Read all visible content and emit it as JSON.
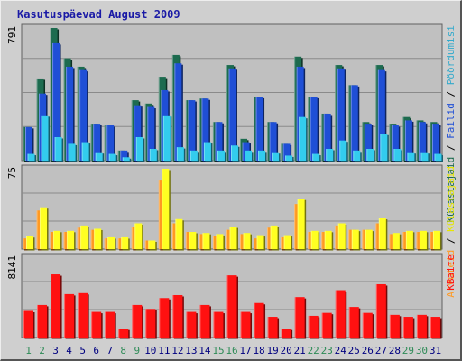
{
  "title": "Kasutuspäevad August 2009",
  "colors": {
    "frame_bg": "#cfcfcf",
    "plot_bg": "#c0c0c0",
    "gridline": "#8a8a8a",
    "title": "#1a1aa6",
    "weekday_label": "#000080",
    "weekend_label": "#2e8b57"
  },
  "weekend_days": [
    1,
    2,
    8,
    9,
    15,
    16,
    22,
    23,
    29,
    30
  ],
  "chart_data": [
    {
      "type": "bar",
      "panel": "top",
      "max_label": "791",
      "ylim": [
        0,
        791
      ],
      "categories": [
        "1",
        "2",
        "3",
        "4",
        "5",
        "6",
        "7",
        "8",
        "9",
        "10",
        "11",
        "12",
        "13",
        "14",
        "15",
        "16",
        "17",
        "18",
        "19",
        "20",
        "21",
        "22",
        "23",
        "24",
        "25",
        "26",
        "27",
        "28",
        "29",
        "30",
        "31"
      ],
      "series": [
        {
          "name": "Külastajaid",
          "color": "#1d6b4f",
          "values": [
            200,
            490,
            791,
            610,
            560,
            220,
            210,
            60,
            360,
            340,
            500,
            630,
            360,
            370,
            230,
            570,
            130,
            380,
            230,
            100,
            620,
            380,
            280,
            570,
            450,
            230,
            570,
            220,
            260,
            240,
            230
          ]
        },
        {
          "name": "Failid",
          "color": "#1f4fd6",
          "values": [
            200,
            400,
            700,
            560,
            540,
            220,
            210,
            60,
            330,
            320,
            420,
            580,
            360,
            370,
            230,
            550,
            110,
            380,
            230,
            100,
            560,
            380,
            280,
            550,
            450,
            220,
            540,
            210,
            240,
            230,
            220
          ]
        },
        {
          "name": "Pöördumisi",
          "color": "#33ccee",
          "values": [
            40,
            270,
            140,
            100,
            110,
            50,
            40,
            20,
            140,
            70,
            270,
            80,
            60,
            110,
            60,
            90,
            60,
            60,
            50,
            30,
            260,
            40,
            70,
            120,
            60,
            70,
            160,
            70,
            50,
            50,
            40
          ]
        }
      ]
    },
    {
      "type": "bar",
      "panel": "middle",
      "max_label": "75",
      "ylim": [
        0,
        75
      ],
      "categories": [
        "1",
        "2",
        "3",
        "4",
        "5",
        "6",
        "7",
        "8",
        "9",
        "10",
        "11",
        "12",
        "13",
        "14",
        "15",
        "16",
        "17",
        "18",
        "19",
        "20",
        "21",
        "22",
        "23",
        "24",
        "25",
        "26",
        "27",
        "28",
        "29",
        "30",
        "31"
      ],
      "series": [
        {
          "name": "Arvuteid",
          "color": "#ff9922",
          "values": [
            10,
            36,
            16,
            16,
            20,
            18,
            10,
            10,
            21,
            8,
            64,
            24,
            16,
            14,
            12,
            18,
            14,
            10,
            20,
            11,
            42,
            16,
            16,
            22,
            18,
            18,
            24,
            14,
            16,
            16,
            16
          ]
        },
        {
          "name": "Külastajaid",
          "color": "#ffff22",
          "values": [
            12,
            39,
            17,
            17,
            22,
            19,
            11,
            11,
            24,
            8,
            75,
            28,
            16,
            15,
            14,
            21,
            15,
            13,
            22,
            13,
            47,
            17,
            17,
            24,
            18,
            18,
            29,
            15,
            17,
            17,
            17
          ]
        }
      ]
    },
    {
      "type": "bar",
      "panel": "bottom",
      "max_label": "8141",
      "ylim": [
        0,
        8141
      ],
      "categories": [
        "1",
        "2",
        "3",
        "4",
        "5",
        "6",
        "7",
        "8",
        "9",
        "10",
        "11",
        "12",
        "13",
        "14",
        "15",
        "16",
        "17",
        "18",
        "19",
        "20",
        "21",
        "22",
        "23",
        "24",
        "25",
        "26",
        "27",
        "28",
        "29",
        "30",
        "31"
      ],
      "series": [
        {
          "name": "KBaite",
          "color": "#ff1111",
          "values": [
            2700,
            3300,
            6400,
            4400,
            4500,
            2600,
            2600,
            900,
            3300,
            2900,
            4000,
            4300,
            2600,
            3300,
            2600,
            6300,
            2600,
            3500,
            2100,
            900,
            4100,
            2200,
            2500,
            4800,
            3100,
            2500,
            5400,
            2300,
            2100,
            2300,
            2100
          ]
        }
      ]
    }
  ],
  "side_legends": [
    {
      "panel": "top",
      "parts": [
        {
          "text": "Külastajaid",
          "color": "#1d6b4f"
        },
        {
          "text": " / ",
          "color": "#000000"
        },
        {
          "text": "Failid",
          "color": "#1f4fd6"
        },
        {
          "text": " / ",
          "color": "#000000"
        },
        {
          "text": "Pöördumisi",
          "color": "#33aacc"
        }
      ]
    },
    {
      "panel": "middle",
      "parts": [
        {
          "text": "Arvuteid",
          "color": "#ff9922"
        },
        {
          "text": " / ",
          "color": "#000000"
        },
        {
          "text": "Külastajaid",
          "color": "#e6e600"
        }
      ]
    },
    {
      "panel": "bottom",
      "parts": [
        {
          "text": "KBaite",
          "color": "#ff1111"
        }
      ]
    }
  ]
}
